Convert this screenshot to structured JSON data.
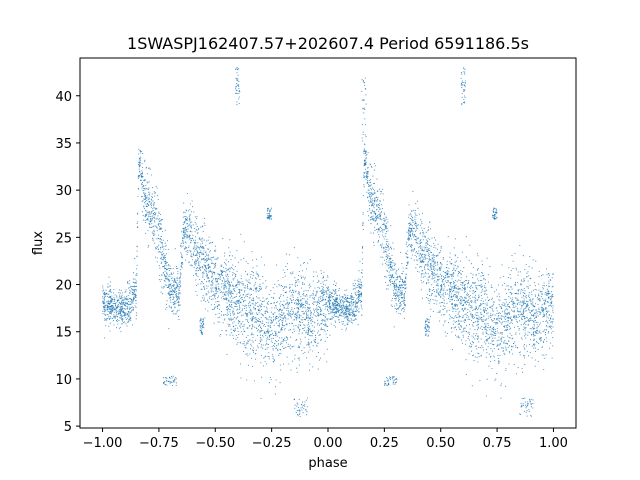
{
  "chart_data": {
    "type": "scatter",
    "title": "1SWASPJ162407.57+202607.4 Period 6591186.5s",
    "xlabel": "phase",
    "ylabel": "flux",
    "xlim": [
      -1.1,
      1.1
    ],
    "ylim": [
      4.8,
      44.0
    ],
    "xticks": [
      -1.0,
      -0.75,
      -0.5,
      -0.25,
      0.0,
      0.25,
      0.5,
      0.75,
      1.0
    ],
    "xtick_labels": [
      "−1.00",
      "−0.75",
      "−0.50",
      "−0.25",
      "0.00",
      "0.25",
      "0.50",
      "0.75",
      "1.00"
    ],
    "yticks": [
      5,
      10,
      15,
      20,
      25,
      30,
      35,
      40
    ],
    "ytick_labels": [
      "5",
      "10",
      "15",
      "20",
      "25",
      "30",
      "35",
      "40"
    ],
    "grid": false,
    "legend": "none",
    "marker_color": "#1f77b4",
    "series": [
      {
        "phase_flux_profile": [
          [
            0.0,
            18.0,
            1.2
          ],
          [
            0.04,
            17.8,
            1.2
          ],
          [
            0.08,
            17.3,
            1.1
          ],
          [
            0.12,
            18.0,
            1.3
          ],
          [
            0.15,
            19.5,
            1.6
          ],
          [
            0.16,
            32.5,
            1.3
          ],
          [
            0.17,
            32.5,
            1.3
          ],
          [
            0.18,
            30.0,
            2.0
          ],
          [
            0.2,
            28.5,
            2.0
          ],
          [
            0.23,
            27.5,
            2.0
          ],
          [
            0.26,
            24.0,
            2.5
          ],
          [
            0.3,
            19.5,
            1.5
          ],
          [
            0.34,
            19.0,
            2.0
          ],
          [
            0.36,
            26.0,
            1.2
          ],
          [
            0.4,
            24.5,
            2.2
          ],
          [
            0.44,
            22.5,
            2.5
          ],
          [
            0.48,
            21.0,
            2.5
          ],
          [
            0.52,
            19.5,
            2.5
          ],
          [
            0.56,
            19.0,
            2.5
          ],
          [
            0.6,
            18.0,
            2.8
          ],
          [
            0.64,
            17.5,
            3.0
          ],
          [
            0.68,
            17.0,
            3.5
          ],
          [
            0.72,
            16.0,
            3.2
          ],
          [
            0.76,
            15.0,
            3.0
          ],
          [
            0.8,
            16.5,
            3.0
          ],
          [
            0.84,
            17.5,
            3.0
          ],
          [
            0.88,
            17.0,
            3.0
          ],
          [
            0.92,
            16.5,
            3.0
          ],
          [
            0.96,
            17.0,
            3.0
          ],
          [
            1.0,
            18.0,
            2.5
          ]
        ],
        "outlier_clusters": [
          [
            0.16,
            38.0,
            0.01,
            4.0
          ],
          [
            0.28,
            9.8,
            0.03,
            0.5
          ],
          [
            -0.7,
            9.8,
            0.03,
            0.5
          ],
          [
            0.6,
            41.0,
            0.01,
            2.0
          ],
          [
            -0.4,
            41.0,
            0.01,
            2.0
          ],
          [
            0.44,
            15.5,
            0.01,
            1.0
          ],
          [
            -0.56,
            15.5,
            0.01,
            1.0
          ],
          [
            0.74,
            27.5,
            0.01,
            0.6
          ],
          [
            -0.26,
            27.5,
            0.01,
            0.6
          ],
          [
            0.88,
            7.0,
            0.03,
            1.0
          ],
          [
            -0.12,
            7.0,
            0.03,
            1.0
          ]
        ]
      }
    ]
  }
}
